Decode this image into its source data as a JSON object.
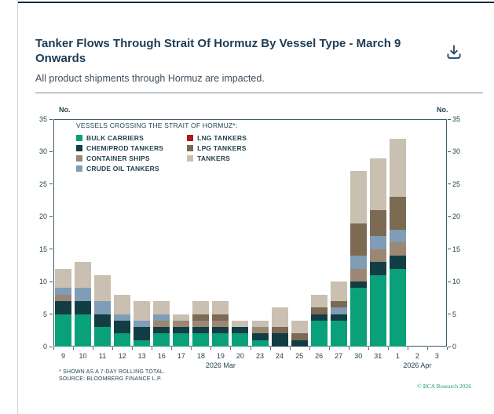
{
  "header": {
    "title": "Tanker Flows Through Strait Of Hormuz By Vessel Type - March 9 Onwards",
    "subtitle": "All product shipments through Hormuz are impacted."
  },
  "footer": {
    "copyright": "© BCA Research 2026"
  },
  "chart_data": {
    "type": "bar",
    "stacked": true,
    "legend_title": "VESSELS CROSSING THE STRAIT OF HORMUZ*:",
    "y_unit": "No.",
    "ylim": [
      0,
      35
    ],
    "ytick_step": 5,
    "grid": false,
    "legend_position": "top-left-inside",
    "categories": [
      "9",
      "10",
      "11",
      "12",
      "13",
      "16",
      "17",
      "18",
      "19",
      "20",
      "23",
      "24",
      "25",
      "26",
      "27",
      "30",
      "31",
      "1",
      "2",
      "3"
    ],
    "era_labels": [
      {
        "label": "2026 Mar",
        "slot": 8
      },
      {
        "label": "2026 Apr",
        "slot": 18
      }
    ],
    "series": [
      {
        "name": "BULK CARRIERS",
        "color": "#0aa07a",
        "values": [
          5,
          5,
          3,
          2,
          1,
          2,
          2,
          2,
          2,
          2,
          1,
          0,
          0,
          4,
          4,
          9,
          11,
          12,
          0,
          0
        ]
      },
      {
        "name": "CHEM/PROD TANKERS",
        "color": "#133d45",
        "values": [
          2,
          2,
          2,
          2,
          2,
          1,
          1,
          1,
          1,
          1,
          1,
          2,
          1,
          1,
          1,
          1,
          2,
          2,
          0,
          0
        ]
      },
      {
        "name": "CONTAINER SHIPS",
        "color": "#9c8775",
        "values": [
          1,
          0,
          0,
          0,
          0,
          1,
          1,
          1,
          1,
          0,
          1,
          0,
          0,
          0,
          0,
          2,
          2,
          2,
          0,
          0
        ]
      },
      {
        "name": "CRUDE OIL TANKERS",
        "color": "#7f9db6",
        "values": [
          1,
          2,
          2,
          1,
          1,
          1,
          0,
          0,
          0,
          0,
          0,
          0,
          0,
          0,
          1,
          2,
          2,
          2,
          0,
          0
        ]
      },
      {
        "name": "LNG TANKERS",
        "color": "#b31919",
        "values": [
          0,
          0,
          0,
          0,
          0,
          0,
          0,
          0,
          0,
          0,
          0,
          0,
          0,
          0,
          0,
          0,
          0,
          0,
          0,
          0
        ]
      },
      {
        "name": "LPG TANKERS",
        "color": "#7c6a53",
        "values": [
          0,
          0,
          0,
          0,
          0,
          0,
          0,
          1,
          1,
          0,
          0,
          1,
          1,
          1,
          1,
          5,
          4,
          5,
          0,
          0
        ]
      },
      {
        "name": "TANKERS",
        "color": "#c9c0b2",
        "values": [
          3,
          4,
          4,
          3,
          3,
          2,
          1,
          2,
          2,
          1,
          1,
          3,
          2,
          2,
          3,
          8,
          8,
          9,
          0,
          0
        ]
      }
    ],
    "totals": [
      12,
      13,
      11,
      8,
      7,
      7,
      5,
      7,
      7,
      4,
      4,
      6,
      4,
      8,
      10,
      27,
      29,
      32,
      0,
      0
    ],
    "footnotes": [
      "* SHOWN AS A 7-DAY ROLLING TOTAL.",
      "SOURCE: BLOOMBERG FINANCE L.P."
    ]
  }
}
